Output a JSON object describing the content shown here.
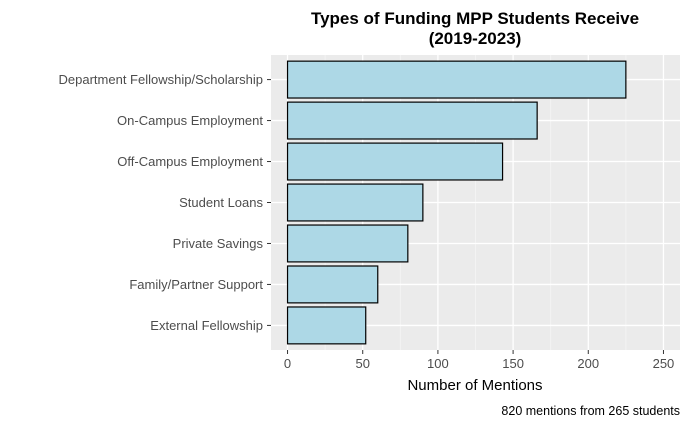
{
  "chart_data": {
    "type": "bar",
    "orientation": "horizontal",
    "title": "Types of Funding MPP Students Receive",
    "subtitle": "(2019-2023)",
    "categories": [
      "Department Fellowship/Scholarship",
      "On-Campus Employment",
      "Off-Campus Employment",
      "Student Loans",
      "Private Savings",
      "Family/Partner Support",
      "External Fellowship"
    ],
    "values": [
      225,
      166,
      143,
      90,
      80,
      60,
      52
    ],
    "xlabel": "Number of Mentions",
    "ylabel": "",
    "xlim": [
      -11,
      261
    ],
    "xticks": [
      0,
      50,
      100,
      150,
      200,
      250
    ],
    "grid": true,
    "legend": "none",
    "caption": "820 mentions from 265 students",
    "colors": {
      "bar_fill": "#add8e6",
      "bar_stroke": "#000000",
      "panel_bg": "#ebebeb",
      "grid_major": "#ffffff",
      "grid_minor": "#f5f5f5"
    }
  }
}
